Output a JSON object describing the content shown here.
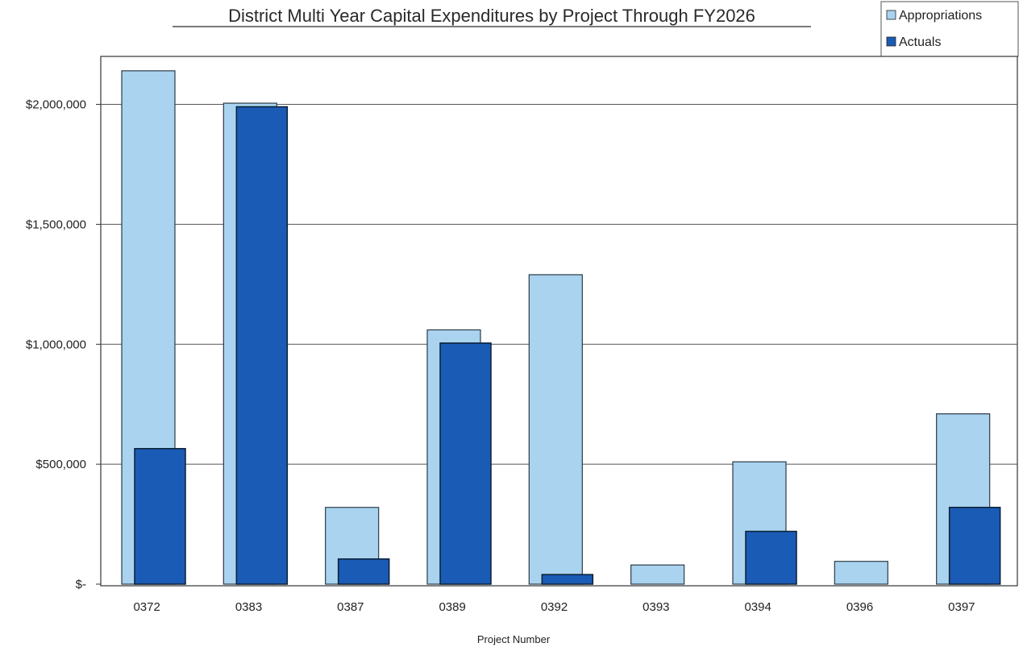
{
  "chart_data": {
    "type": "bar",
    "title": "District Multi Year Capital Expenditures by Project Through FY2026",
    "xlabel": "Project Number",
    "ylabel": "",
    "categories": [
      "0372",
      "0383",
      "0387",
      "0389",
      "0392",
      "0393",
      "0394",
      "0396",
      "0397"
    ],
    "series": [
      {
        "name": "Appropriations",
        "color": "#a9d3ee",
        "values": [
          2140000,
          2005000,
          320000,
          1060000,
          1290000,
          80000,
          510000,
          95000,
          710000
        ]
      },
      {
        "name": "Actuals",
        "color": "#1a5bb5",
        "values": [
          565000,
          1990000,
          105000,
          1005000,
          40000,
          0,
          220000,
          0,
          320000
        ]
      }
    ],
    "ylim": [
      0,
      2200000
    ],
    "yticks": [
      {
        "value": 0,
        "label": "$-"
      },
      {
        "value": 500000,
        "label": "$500,000"
      },
      {
        "value": 1000000,
        "label": "$1,000,000"
      },
      {
        "value": 1500000,
        "label": "$1,500,000"
      },
      {
        "value": 2000000,
        "label": "$2,000,000"
      }
    ],
    "grid": true,
    "legend": "top-right"
  }
}
